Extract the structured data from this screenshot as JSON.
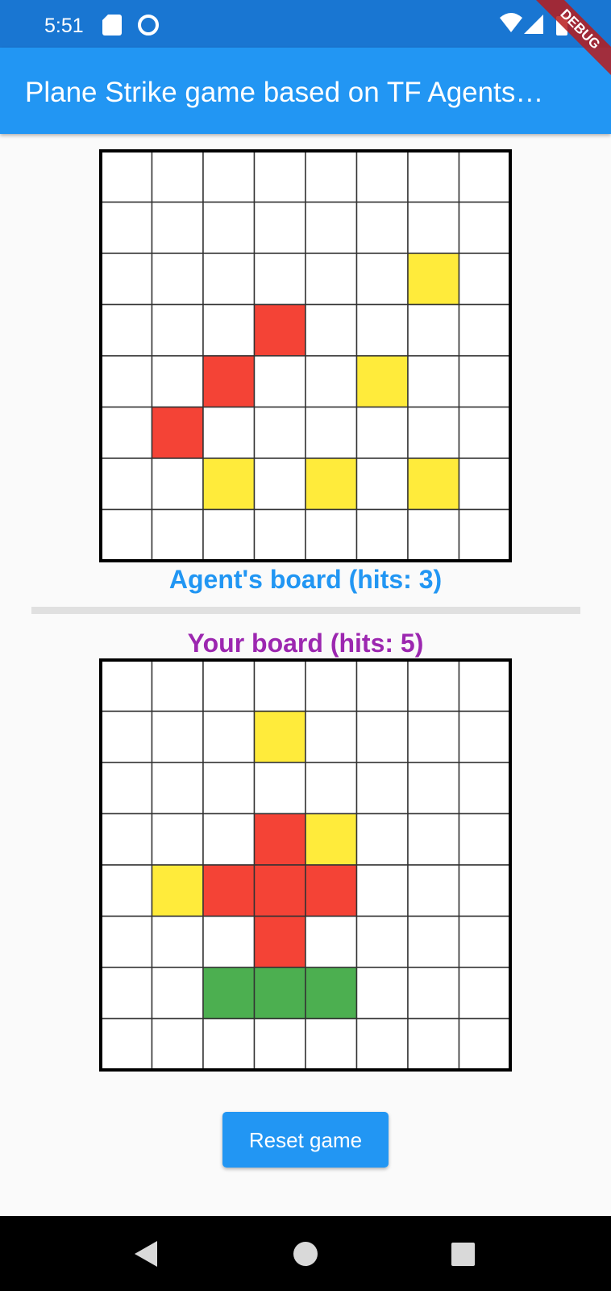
{
  "status_bar": {
    "time": "5:51"
  },
  "debug_banner": "DEBUG",
  "app_bar": {
    "title": "Plane Strike game based on TF Agents…"
  },
  "agent_board": {
    "label": "Agent's board (hits: 3)",
    "label_color": "#2196f3",
    "cells": [
      [
        "#ffffff",
        "#ffffff",
        "#ffffff",
        "#ffffff",
        "#ffffff",
        "#ffffff",
        "#ffffff",
        "#ffffff"
      ],
      [
        "#ffffff",
        "#ffffff",
        "#ffffff",
        "#ffffff",
        "#ffffff",
        "#ffffff",
        "#ffffff",
        "#ffffff"
      ],
      [
        "#ffffff",
        "#ffffff",
        "#ffffff",
        "#ffffff",
        "#ffffff",
        "#ffffff",
        "#ffeb3b",
        "#ffffff"
      ],
      [
        "#ffffff",
        "#ffffff",
        "#ffffff",
        "#f44336",
        "#ffffff",
        "#ffffff",
        "#ffffff",
        "#ffffff"
      ],
      [
        "#ffffff",
        "#ffffff",
        "#f44336",
        "#ffffff",
        "#ffffff",
        "#ffeb3b",
        "#ffffff",
        "#ffffff"
      ],
      [
        "#ffffff",
        "#f44336",
        "#ffffff",
        "#ffffff",
        "#ffffff",
        "#ffffff",
        "#ffffff",
        "#ffffff"
      ],
      [
        "#ffffff",
        "#ffffff",
        "#ffeb3b",
        "#ffffff",
        "#ffeb3b",
        "#ffffff",
        "#ffeb3b",
        "#ffffff"
      ],
      [
        "#ffffff",
        "#ffffff",
        "#ffffff",
        "#ffffff",
        "#ffffff",
        "#ffffff",
        "#ffffff",
        "#ffffff"
      ]
    ]
  },
  "your_board": {
    "label": "Your board (hits: 5)",
    "label_color": "#9c27b0",
    "cells": [
      [
        "#ffffff",
        "#ffffff",
        "#ffffff",
        "#ffffff",
        "#ffffff",
        "#ffffff",
        "#ffffff",
        "#ffffff"
      ],
      [
        "#ffffff",
        "#ffffff",
        "#ffffff",
        "#ffeb3b",
        "#ffffff",
        "#ffffff",
        "#ffffff",
        "#ffffff"
      ],
      [
        "#ffffff",
        "#ffffff",
        "#ffffff",
        "#ffffff",
        "#ffffff",
        "#ffffff",
        "#ffffff",
        "#ffffff"
      ],
      [
        "#ffffff",
        "#ffffff",
        "#ffffff",
        "#f44336",
        "#ffeb3b",
        "#ffffff",
        "#ffffff",
        "#ffffff"
      ],
      [
        "#ffffff",
        "#ffeb3b",
        "#f44336",
        "#f44336",
        "#f44336",
        "#ffffff",
        "#ffffff",
        "#ffffff"
      ],
      [
        "#ffffff",
        "#ffffff",
        "#ffffff",
        "#f44336",
        "#ffffff",
        "#ffffff",
        "#ffffff",
        "#ffffff"
      ],
      [
        "#ffffff",
        "#ffffff",
        "#4caf50",
        "#4caf50",
        "#4caf50",
        "#ffffff",
        "#ffffff",
        "#ffffff"
      ],
      [
        "#ffffff",
        "#ffffff",
        "#ffffff",
        "#ffffff",
        "#ffffff",
        "#ffffff",
        "#ffffff",
        "#ffffff"
      ]
    ]
  },
  "reset_button": {
    "label": "Reset game"
  }
}
